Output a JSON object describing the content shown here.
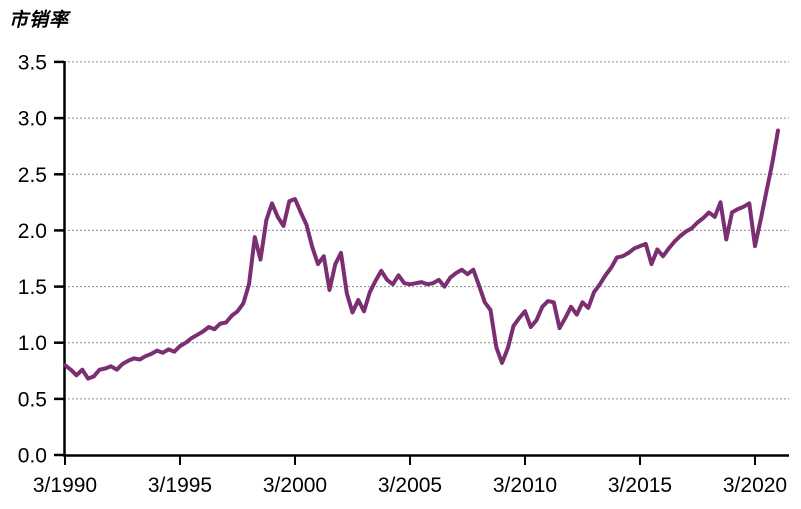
{
  "chart_data": {
    "type": "line",
    "title": "市销率",
    "series_name": "市销率",
    "legend": "none",
    "grid": "horizontal-dotted",
    "ylim": [
      0.0,
      3.5
    ],
    "ytick_step": 0.5,
    "ytick_labels": [
      "0.0",
      "0.5",
      "1.0",
      "1.5",
      "2.0",
      "2.5",
      "3.0",
      "3.5"
    ],
    "xtick_labels": [
      "3/1990",
      "3/1995",
      "3/2000",
      "3/2005",
      "3/2010",
      "3/2015",
      "3/2020"
    ],
    "xtick_every_n_points": 20,
    "line_color": "#7C2E72",
    "axis_color": "#000000",
    "gridline_color": "#8C8C8C",
    "background": "#FFFFFF",
    "x": [
      "3/1990",
      "6/1990",
      "9/1990",
      "12/1990",
      "3/1991",
      "6/1991",
      "9/1991",
      "12/1991",
      "3/1992",
      "6/1992",
      "9/1992",
      "12/1992",
      "3/1993",
      "6/1993",
      "9/1993",
      "12/1993",
      "3/1994",
      "6/1994",
      "9/1994",
      "12/1994",
      "3/1995",
      "6/1995",
      "9/1995",
      "12/1995",
      "3/1996",
      "6/1996",
      "9/1996",
      "12/1996",
      "3/1997",
      "6/1997",
      "9/1997",
      "12/1997",
      "3/1998",
      "6/1998",
      "9/1998",
      "12/1998",
      "3/1999",
      "6/1999",
      "9/1999",
      "12/1999",
      "3/2000",
      "6/2000",
      "9/2000",
      "12/2000",
      "3/2001",
      "6/2001",
      "9/2001",
      "12/2001",
      "3/2002",
      "6/2002",
      "9/2002",
      "12/2002",
      "3/2003",
      "6/2003",
      "9/2003",
      "12/2003",
      "3/2004",
      "6/2004",
      "9/2004",
      "12/2004",
      "3/2005",
      "6/2005",
      "9/2005",
      "12/2005",
      "3/2006",
      "6/2006",
      "9/2006",
      "12/2006",
      "3/2007",
      "6/2007",
      "9/2007",
      "12/2007",
      "3/2008",
      "6/2008",
      "9/2008",
      "12/2008",
      "3/2009",
      "6/2009",
      "9/2009",
      "12/2009",
      "3/2010",
      "6/2010",
      "9/2010",
      "12/2010",
      "3/2011",
      "6/2011",
      "9/2011",
      "12/2011",
      "3/2012",
      "6/2012",
      "9/2012",
      "12/2012",
      "3/2013",
      "6/2013",
      "9/2013",
      "12/2013",
      "3/2014",
      "6/2014",
      "9/2014",
      "12/2014",
      "3/2015",
      "6/2015",
      "9/2015",
      "12/2015",
      "3/2016",
      "6/2016",
      "9/2016",
      "12/2016",
      "3/2017",
      "6/2017",
      "9/2017",
      "12/2017",
      "3/2018",
      "6/2018",
      "9/2018",
      "12/2018",
      "3/2019",
      "6/2019",
      "9/2019",
      "12/2019",
      "3/2020",
      "6/2020",
      "9/2020",
      "12/2020",
      "3/2021"
    ],
    "values": [
      0.8,
      0.76,
      0.71,
      0.76,
      0.68,
      0.7,
      0.76,
      0.77,
      0.79,
      0.76,
      0.81,
      0.84,
      0.86,
      0.85,
      0.88,
      0.9,
      0.93,
      0.91,
      0.94,
      0.92,
      0.97,
      1.0,
      1.04,
      1.07,
      1.1,
      1.14,
      1.12,
      1.17,
      1.18,
      1.24,
      1.28,
      1.35,
      1.52,
      1.94,
      1.74,
      2.09,
      2.24,
      2.12,
      2.04,
      2.26,
      2.28,
      2.16,
      2.05,
      1.85,
      1.7,
      1.77,
      1.47,
      1.7,
      1.8,
      1.44,
      1.27,
      1.38,
      1.28,
      1.45,
      1.55,
      1.64,
      1.56,
      1.52,
      1.6,
      1.53,
      1.52,
      1.53,
      1.54,
      1.52,
      1.53,
      1.56,
      1.5,
      1.58,
      1.62,
      1.65,
      1.61,
      1.65,
      1.51,
      1.36,
      1.29,
      0.96,
      0.82,
      0.95,
      1.15,
      1.22,
      1.28,
      1.14,
      1.2,
      1.32,
      1.37,
      1.36,
      1.13,
      1.22,
      1.32,
      1.25,
      1.36,
      1.31,
      1.45,
      1.52,
      1.6,
      1.67,
      1.76,
      1.77,
      1.8,
      1.84,
      1.86,
      1.88,
      1.7,
      1.83,
      1.77,
      1.84,
      1.9,
      1.95,
      1.99,
      2.02,
      2.07,
      2.11,
      2.16,
      2.12,
      2.25,
      1.92,
      2.16,
      2.19,
      2.21,
      2.24,
      1.86,
      2.1,
      2.35,
      2.6,
      2.89
    ]
  }
}
